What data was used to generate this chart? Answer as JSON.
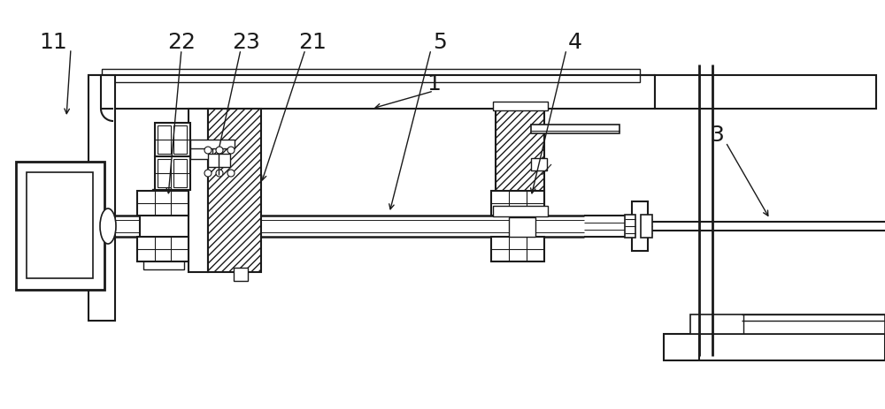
{
  "bg_color": "#ffffff",
  "line_color": "#1a1a1a",
  "label_fontsize": 18,
  "figsize": [
    10.0,
    4.63
  ],
  "dpi": 100
}
